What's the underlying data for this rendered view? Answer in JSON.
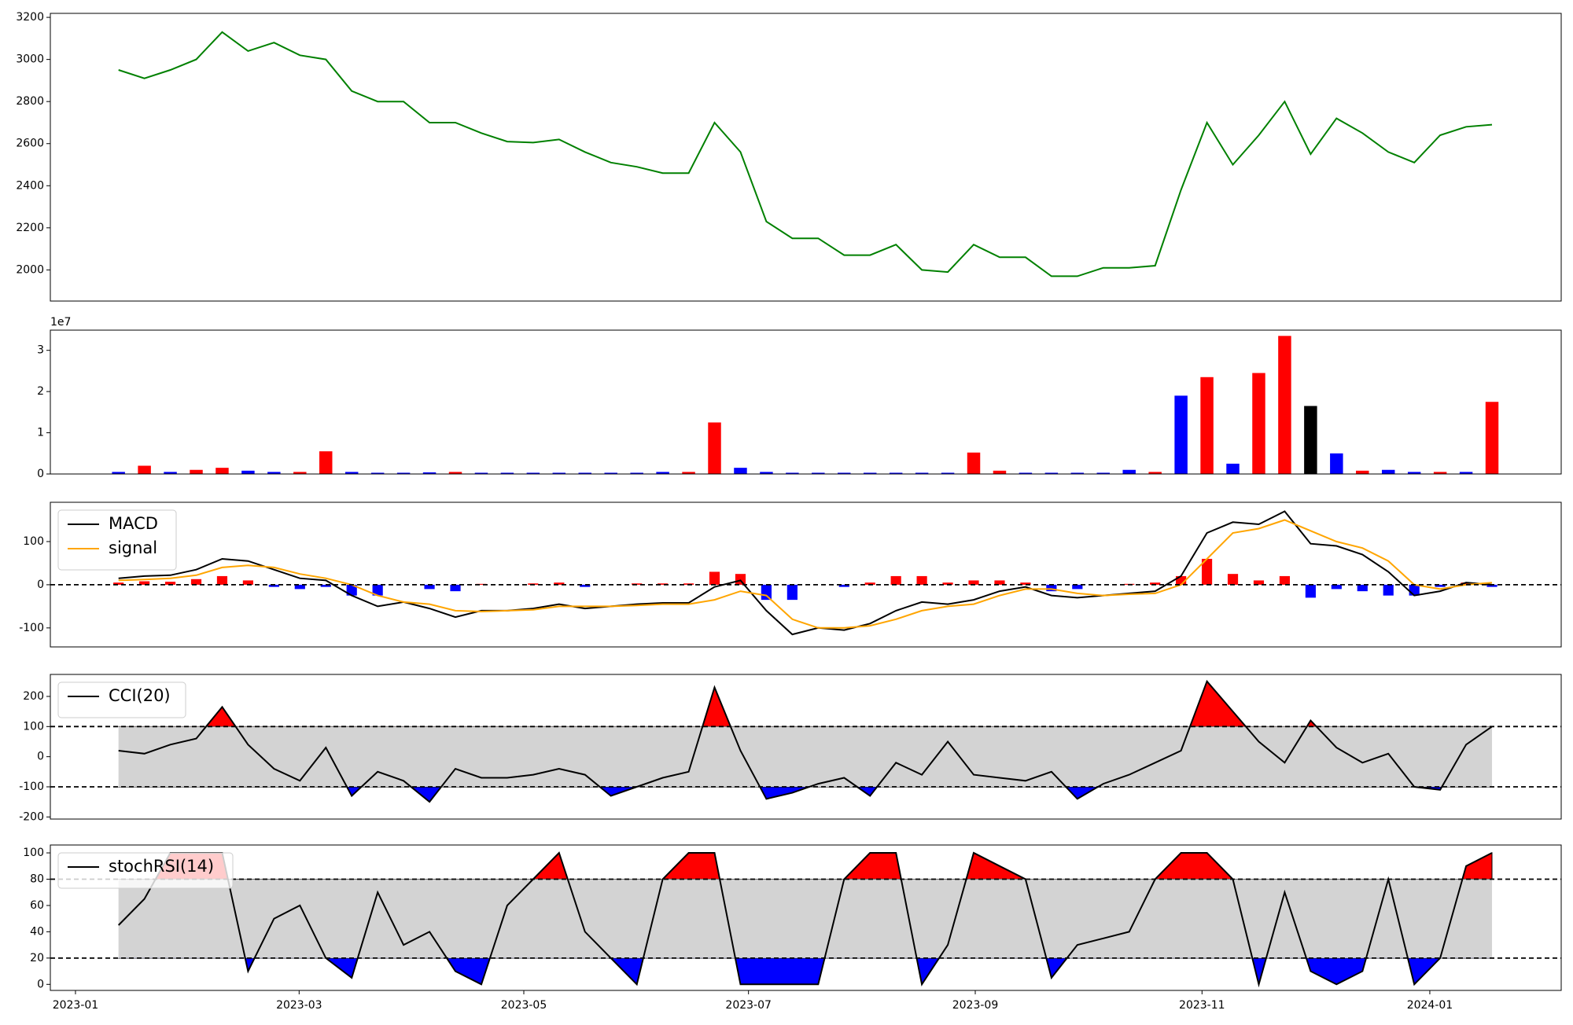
{
  "chart_data": [
    {
      "type": "line",
      "color": "#008000",
      "xlim": [
        -2.63,
        55.67
      ],
      "ylim": [
        1852,
        3219
      ],
      "yticks": [
        2000,
        2200,
        2400,
        2600,
        2800,
        3000,
        3200
      ],
      "values": [
        2950,
        2910,
        2950,
        3000,
        3130,
        3040,
        3080,
        3020,
        3000,
        2850,
        2800,
        2800,
        2700,
        2700,
        2650,
        2610,
        2605,
        2620,
        2560,
        2510,
        2490,
        2460,
        2460,
        2700,
        2560,
        2230,
        2150,
        2150,
        2070,
        2070,
        2120,
        2000,
        1990,
        2120,
        2060,
        2060,
        1970,
        1970,
        2010,
        2010,
        2020,
        2380,
        2700,
        2500,
        2640,
        2800,
        2550,
        2720,
        2650,
        2560,
        2510,
        2640,
        2680,
        2690
      ]
    },
    {
      "type": "bar",
      "offset_label": "1e7",
      "xlim": [
        -2.63,
        55.67
      ],
      "ylim": [
        0,
        3.49
      ],
      "yticks": [
        0,
        1,
        2,
        3
      ],
      "values": [
        0.05,
        0.2,
        0.05,
        0.1,
        0.15,
        0.08,
        0.05,
        0.05,
        0.55,
        0.05,
        0.03,
        0.03,
        0.04,
        0.05,
        0.03,
        0.03,
        0.03,
        0.03,
        0.03,
        0.03,
        0.03,
        0.05,
        0.05,
        1.25,
        0.15,
        0.05,
        0.03,
        0.03,
        0.03,
        0.03,
        0.03,
        0.03,
        0.03,
        0.52,
        0.08,
        0.03,
        0.03,
        0.03,
        0.03,
        0.1,
        0.05,
        1.9,
        2.35,
        0.25,
        2.45,
        3.35,
        1.65,
        0.5,
        0.08,
        0.1,
        0.05,
        0.05,
        0.05,
        1.75
      ],
      "colors": [
        "blue",
        "red",
        "blue",
        "red",
        "red",
        "blue",
        "blue",
        "red",
        "red",
        "blue",
        "blue",
        "blue",
        "blue",
        "red",
        "blue",
        "blue",
        "blue",
        "blue",
        "blue",
        "blue",
        "blue",
        "blue",
        "red",
        "red",
        "blue",
        "blue",
        "blue",
        "blue",
        "blue",
        "blue",
        "blue",
        "blue",
        "blue",
        "red",
        "red",
        "blue",
        "blue",
        "blue",
        "blue",
        "blue",
        "red",
        "blue",
        "red",
        "blue",
        "red",
        "red",
        "black",
        "blue",
        "red",
        "blue",
        "blue",
        "red",
        "blue",
        "red"
      ]
    },
    {
      "type": "macd",
      "xlim": [
        -2.63,
        55.67
      ],
      "ylim": [
        -144,
        191
      ],
      "yticks": [
        -100,
        0,
        100
      ],
      "hlines": [
        0
      ],
      "series": [
        {
          "name": "MACD",
          "color": "#000000",
          "values": [
            15,
            20,
            22,
            35,
            60,
            55,
            35,
            15,
            10,
            -25,
            -50,
            -40,
            -55,
            -75,
            -60,
            -60,
            -55,
            -45,
            -55,
            -50,
            -45,
            -42,
            -42,
            -5,
            10,
            -60,
            -115,
            -100,
            -105,
            -90,
            -60,
            -40,
            -45,
            -35,
            -15,
            -5,
            -25,
            -30,
            -25,
            -20,
            -15,
            20,
            120,
            145,
            140,
            170,
            95,
            90,
            70,
            30,
            -25,
            -15,
            5,
            0
          ]
        },
        {
          "name": "signal",
          "color": "#ffa500",
          "values": [
            10,
            12,
            15,
            22,
            40,
            45,
            40,
            25,
            15,
            0,
            -25,
            -40,
            -45,
            -60,
            -62,
            -60,
            -58,
            -50,
            -50,
            -50,
            -48,
            -45,
            -45,
            -35,
            -15,
            -25,
            -80,
            -100,
            -100,
            -95,
            -80,
            -60,
            -50,
            -45,
            -25,
            -10,
            -10,
            -20,
            -25,
            -22,
            -20,
            0,
            60,
            120,
            130,
            150,
            125,
            100,
            85,
            55,
            0,
            -10,
            0,
            5
          ]
        }
      ],
      "histogram": {
        "positive_color": "red",
        "negative_color": "blue",
        "values": [
          5,
          8,
          7,
          13,
          20,
          10,
          -5,
          -10,
          -5,
          -25,
          -25,
          0,
          -10,
          -15,
          2,
          0,
          3,
          5,
          -5,
          0,
          3,
          3,
          3,
          30,
          25,
          -35,
          -35,
          0,
          -5,
          5,
          20,
          20,
          5,
          10,
          10,
          5,
          -15,
          -10,
          0,
          2,
          5,
          20,
          60,
          25,
          10,
          20,
          -30,
          -10,
          -15,
          -25,
          -25,
          -5,
          5,
          -5
        ]
      }
    },
    {
      "type": "band",
      "xlim": [
        -2.63,
        55.67
      ],
      "ylim": [
        -207,
        273
      ],
      "yticks": [
        -200,
        -100,
        0,
        100,
        200
      ],
      "hlines": [
        -100,
        100
      ],
      "series": [
        {
          "name": "CCI(20)",
          "color": "#000000",
          "values": [
            20,
            10,
            40,
            60,
            165,
            40,
            -40,
            -80,
            30,
            -130,
            -50,
            -80,
            -150,
            -40,
            -70,
            -70,
            -60,
            -40,
            -60,
            -130,
            -100,
            -70,
            -50,
            230,
            20,
            -140,
            -120,
            -90,
            -70,
            -130,
            -20,
            -60,
            50,
            -60,
            -70,
            -80,
            -50,
            -140,
            -90,
            -60,
            -20,
            20,
            250,
            150,
            50,
            -20,
            120,
            30,
            -20,
            10,
            -100,
            -110,
            40,
            100
          ]
        }
      ],
      "band_color": "#d3d3d3",
      "upper_color": "red",
      "lower_color": "blue"
    },
    {
      "type": "band",
      "xlim": [
        -2.63,
        55.67
      ],
      "ylim": [
        -4.6,
        106
      ],
      "yticks": [
        0,
        20,
        40,
        60,
        80,
        100
      ],
      "hlines": [
        20,
        80
      ],
      "xticks": [
        {
          "value": -1.66,
          "label": "2023-01"
        },
        {
          "value": 6.97,
          "label": "2023-03"
        },
        {
          "value": 15.64,
          "label": "2023-05"
        },
        {
          "value": 24.31,
          "label": "2023-07"
        },
        {
          "value": 33.06,
          "label": "2023-09"
        },
        {
          "value": 41.81,
          "label": "2023-11"
        },
        {
          "value": 50.6,
          "label": "2024-01"
        }
      ],
      "series": [
        {
          "name": "stochRSI(14)",
          "color": "#000000",
          "values": [
            45,
            65,
            100,
            100,
            100,
            10,
            50,
            60,
            20,
            5,
            70,
            30,
            40,
            10,
            0,
            60,
            80,
            100,
            40,
            20,
            0,
            80,
            100,
            100,
            0,
            0,
            0,
            0,
            80,
            100,
            100,
            0,
            30,
            100,
            90,
            80,
            5,
            30,
            35,
            40,
            80,
            100,
            100,
            80,
            0,
            70,
            10,
            0,
            10,
            80,
            0,
            20,
            90,
            100
          ]
        }
      ],
      "band_color": "#d3d3d3",
      "upper_color": "red",
      "lower_color": "blue"
    }
  ]
}
